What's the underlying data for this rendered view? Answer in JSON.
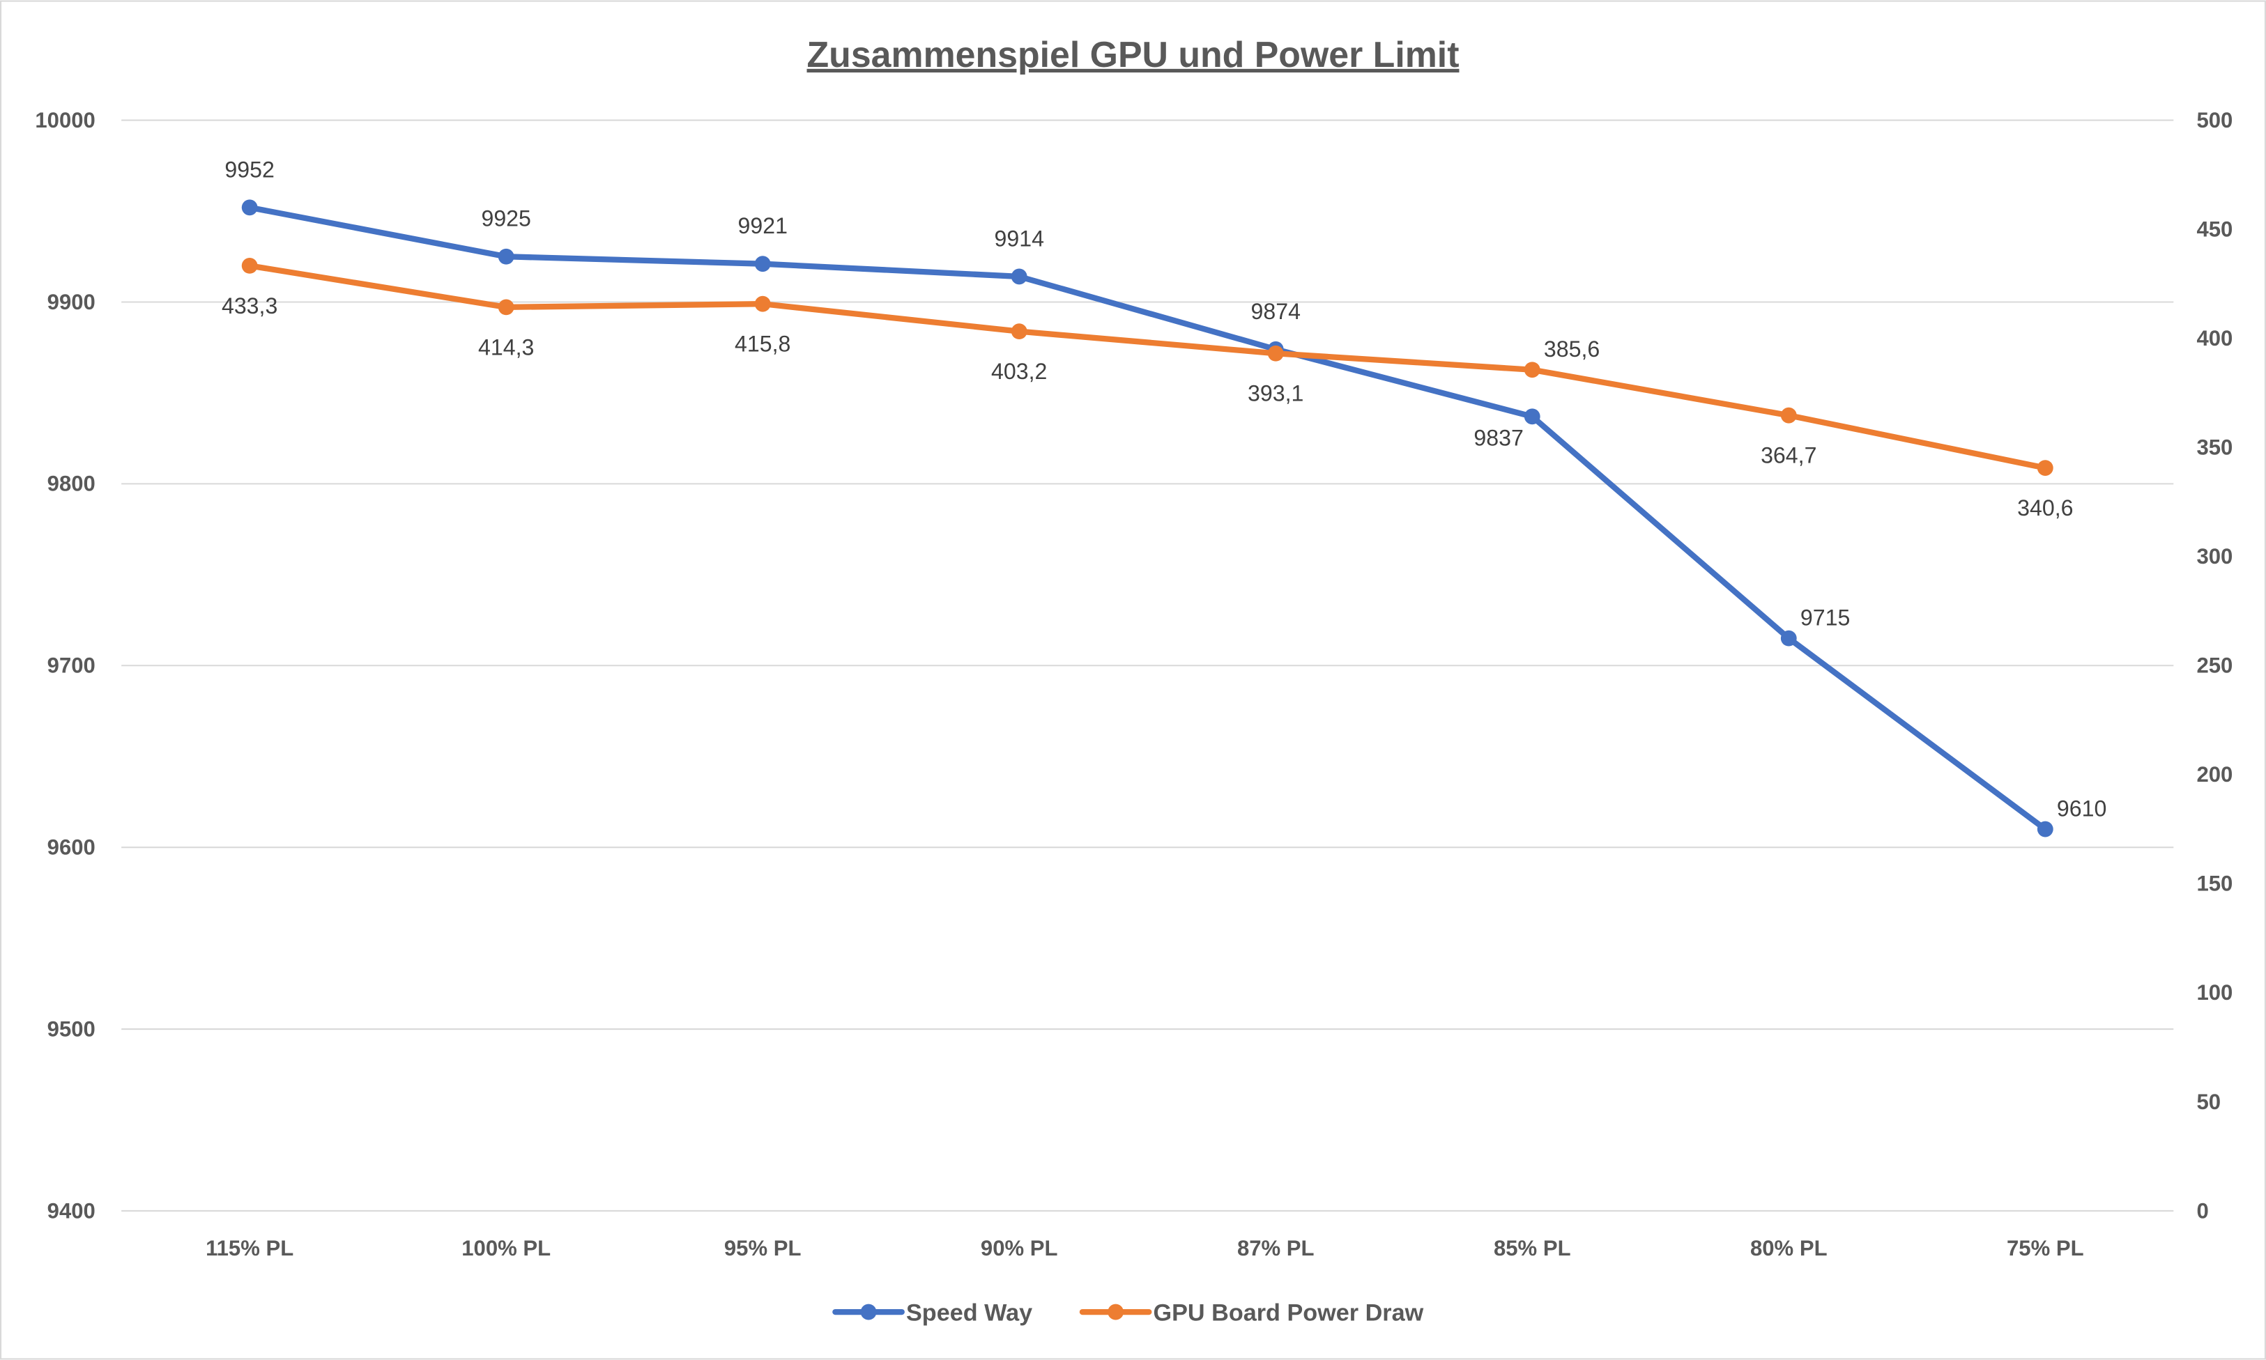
{
  "chart_data": {
    "type": "line",
    "title": "Zusammenspiel GPU und Power Limit",
    "xlabel": "",
    "ylabel": "",
    "categories": [
      "115% PL",
      "100% PL",
      "95% PL",
      "90% PL",
      "87% PL",
      "85% PL",
      "80% PL",
      "75% PL"
    ],
    "y_left": {
      "min": 9400,
      "max": 10000,
      "step": 100,
      "ticks": [
        "9400",
        "9500",
        "9600",
        "9700",
        "9800",
        "9900",
        "10000"
      ]
    },
    "y_right": {
      "min": 0,
      "max": 500,
      "step": 50,
      "ticks": [
        "0",
        "50",
        "100",
        "150",
        "200",
        "250",
        "300",
        "350",
        "400",
        "450",
        "500"
      ]
    },
    "grid": true,
    "legend": "bottom",
    "series": [
      {
        "name": "Speed Way",
        "axis": "left",
        "color": "#4472C4",
        "values": [
          9952,
          9925,
          9921,
          9914,
          9874,
          9837,
          9715,
          9610
        ],
        "labels": [
          "9952",
          "9925",
          "9921",
          "9914",
          "9874",
          "9837",
          "9715",
          "9610"
        ],
        "label_pos": [
          "above",
          "above",
          "above",
          "above",
          "above",
          "below-left",
          "right",
          "right"
        ]
      },
      {
        "name": "GPU Board Power Draw",
        "axis": "right",
        "color": "#ED7D31",
        "values": [
          433.3,
          414.3,
          415.8,
          403.2,
          393.1,
          385.6,
          364.7,
          340.6
        ],
        "labels": [
          "433,3",
          "414,3",
          "415,8",
          "403,2",
          "393,1",
          "385,6",
          "364,7",
          "340,6"
        ],
        "label_pos": [
          "below",
          "below",
          "below",
          "below",
          "below",
          "right",
          "below",
          "below"
        ]
      }
    ]
  }
}
